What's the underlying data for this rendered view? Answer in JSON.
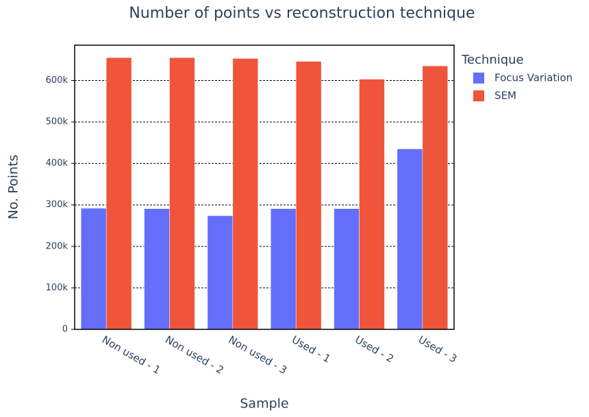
{
  "chart_data": {
    "type": "bar",
    "title": "Number of points vs reconstruction technique",
    "x_label": "Sample",
    "y_label": "No. Points",
    "legend_title": "Technique",
    "legend_position": "right",
    "categories": [
      "Non used - 1",
      "Non used - 2",
      "Non used - 3",
      "Used - 1",
      "Used - 2",
      "Used - 3"
    ],
    "series": [
      {
        "name": "Focus Variation",
        "color": "#636efa",
        "values": [
          292000,
          291000,
          274000,
          291000,
          291000,
          435000
        ]
      },
      {
        "name": "SEM",
        "color": "#ef553b",
        "values": [
          655000,
          655000,
          653000,
          646000,
          603000,
          635000
        ]
      }
    ],
    "ylim": [
      0,
      685000
    ],
    "yticks": [
      0,
      {
        "value": 100000,
        "label": "100k"
      },
      {
        "value": 200000,
        "label": "200k"
      },
      {
        "value": 300000,
        "label": "300k"
      },
      {
        "value": 400000,
        "label": "400k"
      },
      {
        "value": 500000,
        "label": "500k"
      },
      {
        "value": 600000,
        "label": "600k"
      }
    ],
    "grid": true
  }
}
